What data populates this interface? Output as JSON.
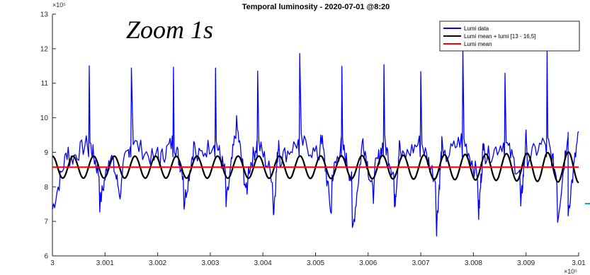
{
  "chart_data": {
    "type": "line",
    "title": "Temporal luminosity - 2020-07-01 @8:20",
    "annotation": "Zoom 1s",
    "y_exponent_label": "×10⁵",
    "x_exponent_label": "×10⁵",
    "xlim": [
      3,
      3.01
    ],
    "ylim": [
      6,
      13
    ],
    "x_ticks": [
      "3",
      "3.001",
      "3.002",
      "3.003",
      "3.004",
      "3.005",
      "3.006",
      "3.007",
      "3.008",
      "3.009",
      "3.01"
    ],
    "y_ticks": [
      "6",
      "7",
      "8",
      "9",
      "10",
      "11",
      "12",
      "13"
    ],
    "grid": false,
    "legend_position": "top-right",
    "colors": {
      "blue": "#0000ff",
      "black": "#000000",
      "red": "#ff0000",
      "axis": "#262626",
      "cyan": "#00b0d0"
    },
    "series": [
      {
        "name": "Lumi data",
        "color": "#0000ff",
        "peaks": [
          {
            "x": 3.0003,
            "y": 9.15
          },
          {
            "x": 3.0007,
            "y": 11.55
          },
          {
            "x": 3.0011,
            "y": 9.0
          },
          {
            "x": 3.0015,
            "y": 11.6
          },
          {
            "x": 3.002,
            "y": 9.1
          },
          {
            "x": 3.0023,
            "y": 11.65
          },
          {
            "x": 3.0027,
            "y": 9.3
          },
          {
            "x": 3.0031,
            "y": 11.7
          },
          {
            "x": 3.0035,
            "y": 9.8
          },
          {
            "x": 3.0039,
            "y": 11.5
          },
          {
            "x": 3.0043,
            "y": 9.4
          },
          {
            "x": 3.0047,
            "y": 11.65
          },
          {
            "x": 3.0051,
            "y": 9.6
          },
          {
            "x": 3.0055,
            "y": 11.35
          },
          {
            "x": 3.0059,
            "y": 9.4
          },
          {
            "x": 3.0063,
            "y": 11.65
          },
          {
            "x": 3.0066,
            "y": 9.3
          },
          {
            "x": 3.007,
            "y": 11.55
          },
          {
            "x": 3.0074,
            "y": 9.2
          },
          {
            "x": 3.0078,
            "y": 12.0
          },
          {
            "x": 3.0082,
            "y": 9.5
          },
          {
            "x": 3.0086,
            "y": 11.55
          },
          {
            "x": 3.009,
            "y": 9.4
          },
          {
            "x": 3.0094,
            "y": 11.75
          },
          {
            "x": 3.0098,
            "y": 9.7
          },
          {
            "x": 3.01,
            "y": 9.6
          }
        ],
        "troughs": [
          {
            "x": 3.0,
            "y": 7.35
          },
          {
            "x": 3.0009,
            "y": 7.5
          },
          {
            "x": 3.0013,
            "y": 7.7
          },
          {
            "x": 3.0025,
            "y": 7.5
          },
          {
            "x": 3.0033,
            "y": 7.45
          },
          {
            "x": 3.0037,
            "y": 7.7
          },
          {
            "x": 3.0042,
            "y": 7.2
          },
          {
            "x": 3.0053,
            "y": 7.2
          },
          {
            "x": 3.0057,
            "y": 6.65
          },
          {
            "x": 3.0061,
            "y": 7.7
          },
          {
            "x": 3.0065,
            "y": 7.4
          },
          {
            "x": 3.0073,
            "y": 6.85
          },
          {
            "x": 3.0081,
            "y": 7.2
          },
          {
            "x": 3.0089,
            "y": 7.4
          },
          {
            "x": 3.0096,
            "y": 7.05
          },
          {
            "x": 3.0098,
            "y": 7.3
          }
        ]
      },
      {
        "name": "Lumi mean + lumi [13 - 16,5]",
        "color": "#000000",
        "mean": 8.57,
        "amplitude": 0.32,
        "cycles": 25.5,
        "end_amplitude": 0.45
      },
      {
        "name": "Lumi mean",
        "color": "#ff0000",
        "y": 8.57
      }
    ]
  }
}
